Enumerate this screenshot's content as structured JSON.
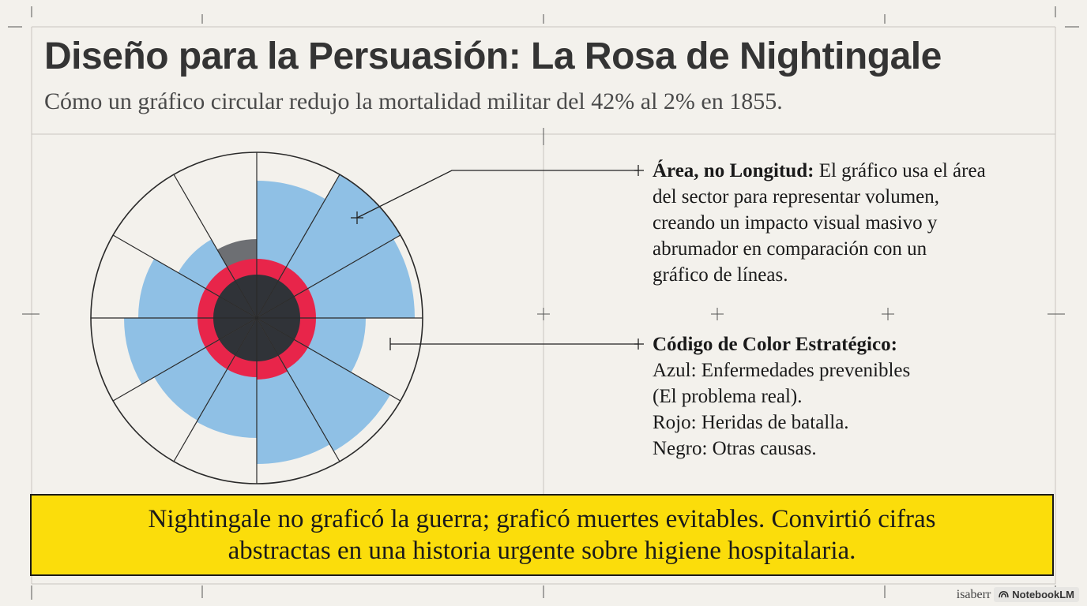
{
  "title": "Diseño para la Persuasión: La Rosa de Nightingale",
  "subtitle": "Cómo un gráfico circular redujo la mortalidad militar del 42% al 2% en 1855.",
  "notes": {
    "area": {
      "heading": "Área, no Longitud:",
      "lines": [
        " El gráfico usa el área",
        "del sector para representar volumen,",
        "creando un impacto visual masivo y",
        "abrumador en comparación con un",
        "gráfico de líneas."
      ]
    },
    "color": {
      "heading": "Código de Color Estratégico:",
      "lines": [
        "Azul: Enfermedades prevenibles",
        "(El problema real).",
        "Rojo: Heridas de batalla.",
        "Negro: Otras causas."
      ]
    }
  },
  "callout": {
    "line1": "Nightingale no graficó la guerra; graficó muertes evitables. Convirtió cifras",
    "line2": "abstractas en una historia urgente sobre higiene hospitalaria."
  },
  "footer": {
    "handle": "isaberr",
    "brand": "NotebookLM"
  },
  "colors": {
    "blue": "#8fc0e5",
    "red": "#e8254a",
    "black": "#303338",
    "gray": "#6d6f73",
    "outline": "#2a2a2a",
    "callout_bg": "#fbdd0b"
  }
}
